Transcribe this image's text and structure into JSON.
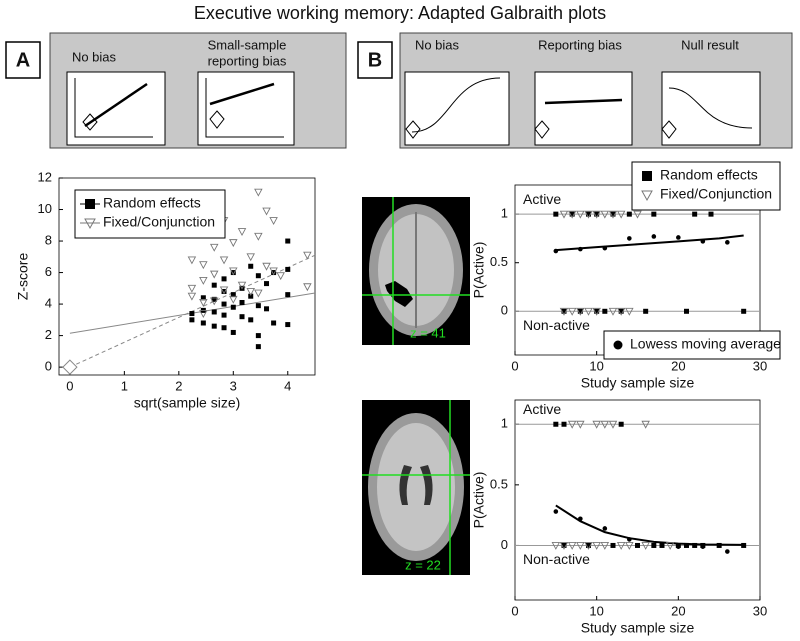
{
  "figure": {
    "title": "Executive working memory: Adapted Galbraith plots",
    "panel_a": {
      "label": "A",
      "schematics": [
        {
          "label_lines": [
            "No bias"
          ]
        },
        {
          "label_lines": [
            "Small-sample",
            "reporting bias"
          ]
        }
      ]
    },
    "panel_b": {
      "label": "B",
      "schematics": [
        {
          "label_lines": [
            "No bias"
          ]
        },
        {
          "label_lines": [
            "Reporting bias"
          ]
        },
        {
          "label_lines": [
            "Null result"
          ]
        }
      ]
    },
    "images": [
      {
        "label": "z = 41"
      },
      {
        "label": "z = 22"
      }
    ]
  },
  "chart_data": [
    {
      "type": "scatter",
      "xlabel": "sqrt(sample size)",
      "ylabel": "Z-score",
      "xlim": [
        -0.2,
        4.5
      ],
      "ylim": [
        -0.5,
        12
      ],
      "xticks": [
        0,
        1,
        2,
        3,
        4
      ],
      "yticks": [
        0,
        2,
        4,
        6,
        8,
        10,
        12
      ],
      "legend": true,
      "series": [
        {
          "name": "Random effects",
          "marker": "square",
          "color": "#000000",
          "x": [
            2.24,
            2.24,
            2.45,
            2.45,
            2.45,
            2.65,
            2.65,
            2.65,
            2.65,
            2.83,
            2.83,
            2.83,
            2.83,
            2.83,
            3.0,
            3.0,
            3.0,
            3.0,
            3.16,
            3.16,
            3.16,
            3.32,
            3.32,
            3.32,
            3.46,
            3.46,
            3.46,
            3.46,
            3.61,
            3.61,
            3.74,
            3.74,
            4.0,
            4.0,
            4.0,
            4.0
          ],
          "values": [
            3.4,
            3.0,
            4.4,
            3.6,
            2.8,
            5.2,
            4.3,
            3.5,
            2.6,
            4.8,
            4.0,
            3.3,
            2.5,
            5.6,
            6.0,
            4.6,
            3.8,
            2.2,
            5.0,
            4.1,
            3.2,
            6.4,
            4.5,
            3.0,
            5.8,
            3.9,
            2.0,
            1.3,
            5.3,
            3.7,
            6.0,
            2.8,
            8.0,
            6.2,
            4.6,
            2.7
          ]
        },
        {
          "name": "Fixed/Conjunction",
          "marker": "triangle",
          "color": "#777777",
          "x": [
            2.24,
            2.24,
            2.24,
            2.45,
            2.45,
            2.45,
            2.45,
            2.65,
            2.65,
            2.65,
            2.83,
            2.83,
            2.83,
            3.0,
            3.0,
            3.0,
            3.16,
            3.16,
            3.32,
            3.32,
            3.46,
            3.46,
            3.46,
            3.61,
            3.61,
            3.74,
            3.74,
            3.87,
            4.36,
            4.36
          ],
          "values": [
            6.8,
            5.0,
            4.5,
            6.5,
            5.5,
            4.1,
            3.4,
            7.6,
            5.9,
            4.2,
            9.3,
            6.8,
            4.9,
            7.9,
            6.1,
            4.3,
            8.6,
            5.2,
            7.0,
            4.8,
            11.1,
            8.3,
            4.7,
            9.9,
            6.4,
            9.3,
            6.1,
            5.8,
            7.1,
            5.1
          ]
        }
      ],
      "lines": [
        {
          "x": [
            0,
            4.5
          ],
          "y": [
            2.15,
            4.7
          ],
          "dash": false,
          "color": "#888888"
        },
        {
          "x": [
            0,
            4.5
          ],
          "y": [
            0,
            7.1
          ],
          "dash": true,
          "color": "#888888"
        }
      ],
      "marker_point": {
        "x": 0,
        "y": 0
      }
    },
    {
      "type": "scatter",
      "xlabel": "Study sample size",
      "ylabel": "P(Active)",
      "xlim": [
        0,
        30
      ],
      "ylim": [
        -0.45,
        1.3
      ],
      "xticks": [
        0,
        10,
        20,
        30
      ],
      "yticks": [
        0,
        0.5,
        1
      ],
      "legend": true,
      "hlines": [
        {
          "value": 1,
          "label": "Active"
        },
        {
          "value": 0,
          "label": "Non-active"
        }
      ],
      "series": [
        {
          "name": "Random effects",
          "marker": "square",
          "color": "#000000",
          "x": [
            5,
            7,
            9,
            10,
            12,
            14,
            17,
            22,
            24,
            6,
            8,
            10,
            11,
            13,
            16,
            21,
            28
          ],
          "values": [
            1,
            1,
            1,
            1,
            1,
            1,
            1,
            1,
            1,
            0,
            0,
            0,
            0,
            0,
            0,
            0,
            0
          ]
        },
        {
          "name": "Fixed/Conjunction",
          "marker": "triangle",
          "color": "#777777",
          "x": [
            6,
            7,
            8,
            9,
            10,
            11,
            12,
            13,
            15,
            6,
            7,
            8,
            9,
            10,
            12,
            13,
            14
          ],
          "values": [
            1,
            1,
            1,
            1,
            1,
            1,
            1,
            1,
            1,
            0,
            0,
            0,
            0,
            0,
            0,
            0,
            0
          ]
        },
        {
          "name": "Lowess moving average",
          "marker": "dot",
          "color": "#000000",
          "x": [
            5,
            8,
            11,
            14,
            17,
            20,
            23,
            26
          ],
          "values": [
            0.62,
            0.64,
            0.65,
            0.75,
            0.77,
            0.76,
            0.72,
            0.71
          ]
        }
      ],
      "lines": [
        {
          "x": [
            5,
            10,
            15,
            20,
            25,
            28
          ],
          "y": [
            0.63,
            0.66,
            0.69,
            0.72,
            0.75,
            0.78
          ],
          "dash": false,
          "color": "#000000"
        }
      ]
    },
    {
      "type": "scatter",
      "xlabel": "Study sample size",
      "ylabel": "P(Active)",
      "xlim": [
        0,
        30
      ],
      "ylim": [
        -0.45,
        1.2
      ],
      "xticks": [
        0,
        10,
        20,
        30
      ],
      "yticks": [
        0,
        0.5,
        1
      ],
      "legend": false,
      "hlines": [
        {
          "value": 1,
          "label": "Active"
        },
        {
          "value": 0,
          "label": "Non-active"
        }
      ],
      "series": [
        {
          "marker": "square",
          "color": "#000000",
          "x": [
            5,
            6,
            13,
            6,
            9,
            12,
            15,
            17,
            18,
            20,
            21,
            22,
            23,
            25,
            28
          ],
          "values": [
            1,
            1,
            1,
            0,
            0,
            0,
            0,
            0,
            0,
            0,
            0,
            0,
            0,
            0,
            0
          ]
        },
        {
          "marker": "triangle",
          "color": "#777777",
          "x": [
            7,
            8,
            10,
            11,
            12,
            16,
            5,
            6,
            7,
            8,
            9,
            10,
            11,
            13,
            14,
            16,
            19
          ],
          "values": [
            1,
            1,
            1,
            1,
            1,
            1,
            0,
            0,
            0,
            0,
            0,
            0,
            0,
            0,
            0,
            0,
            0
          ]
        },
        {
          "marker": "dot",
          "color": "#000000",
          "x": [
            5,
            8,
            11,
            14,
            17,
            20,
            23,
            26
          ],
          "values": [
            0.28,
            0.22,
            0.14,
            0.05,
            0.0,
            -0.01,
            -0.01,
            -0.05
          ]
        }
      ],
      "lines": [
        {
          "x": [
            5,
            8,
            11,
            14,
            17,
            20,
            23,
            28
          ],
          "y": [
            0.33,
            0.2,
            0.11,
            0.06,
            0.03,
            0.015,
            0.008,
            0.005
          ],
          "dash": false,
          "color": "#000000"
        }
      ]
    }
  ]
}
